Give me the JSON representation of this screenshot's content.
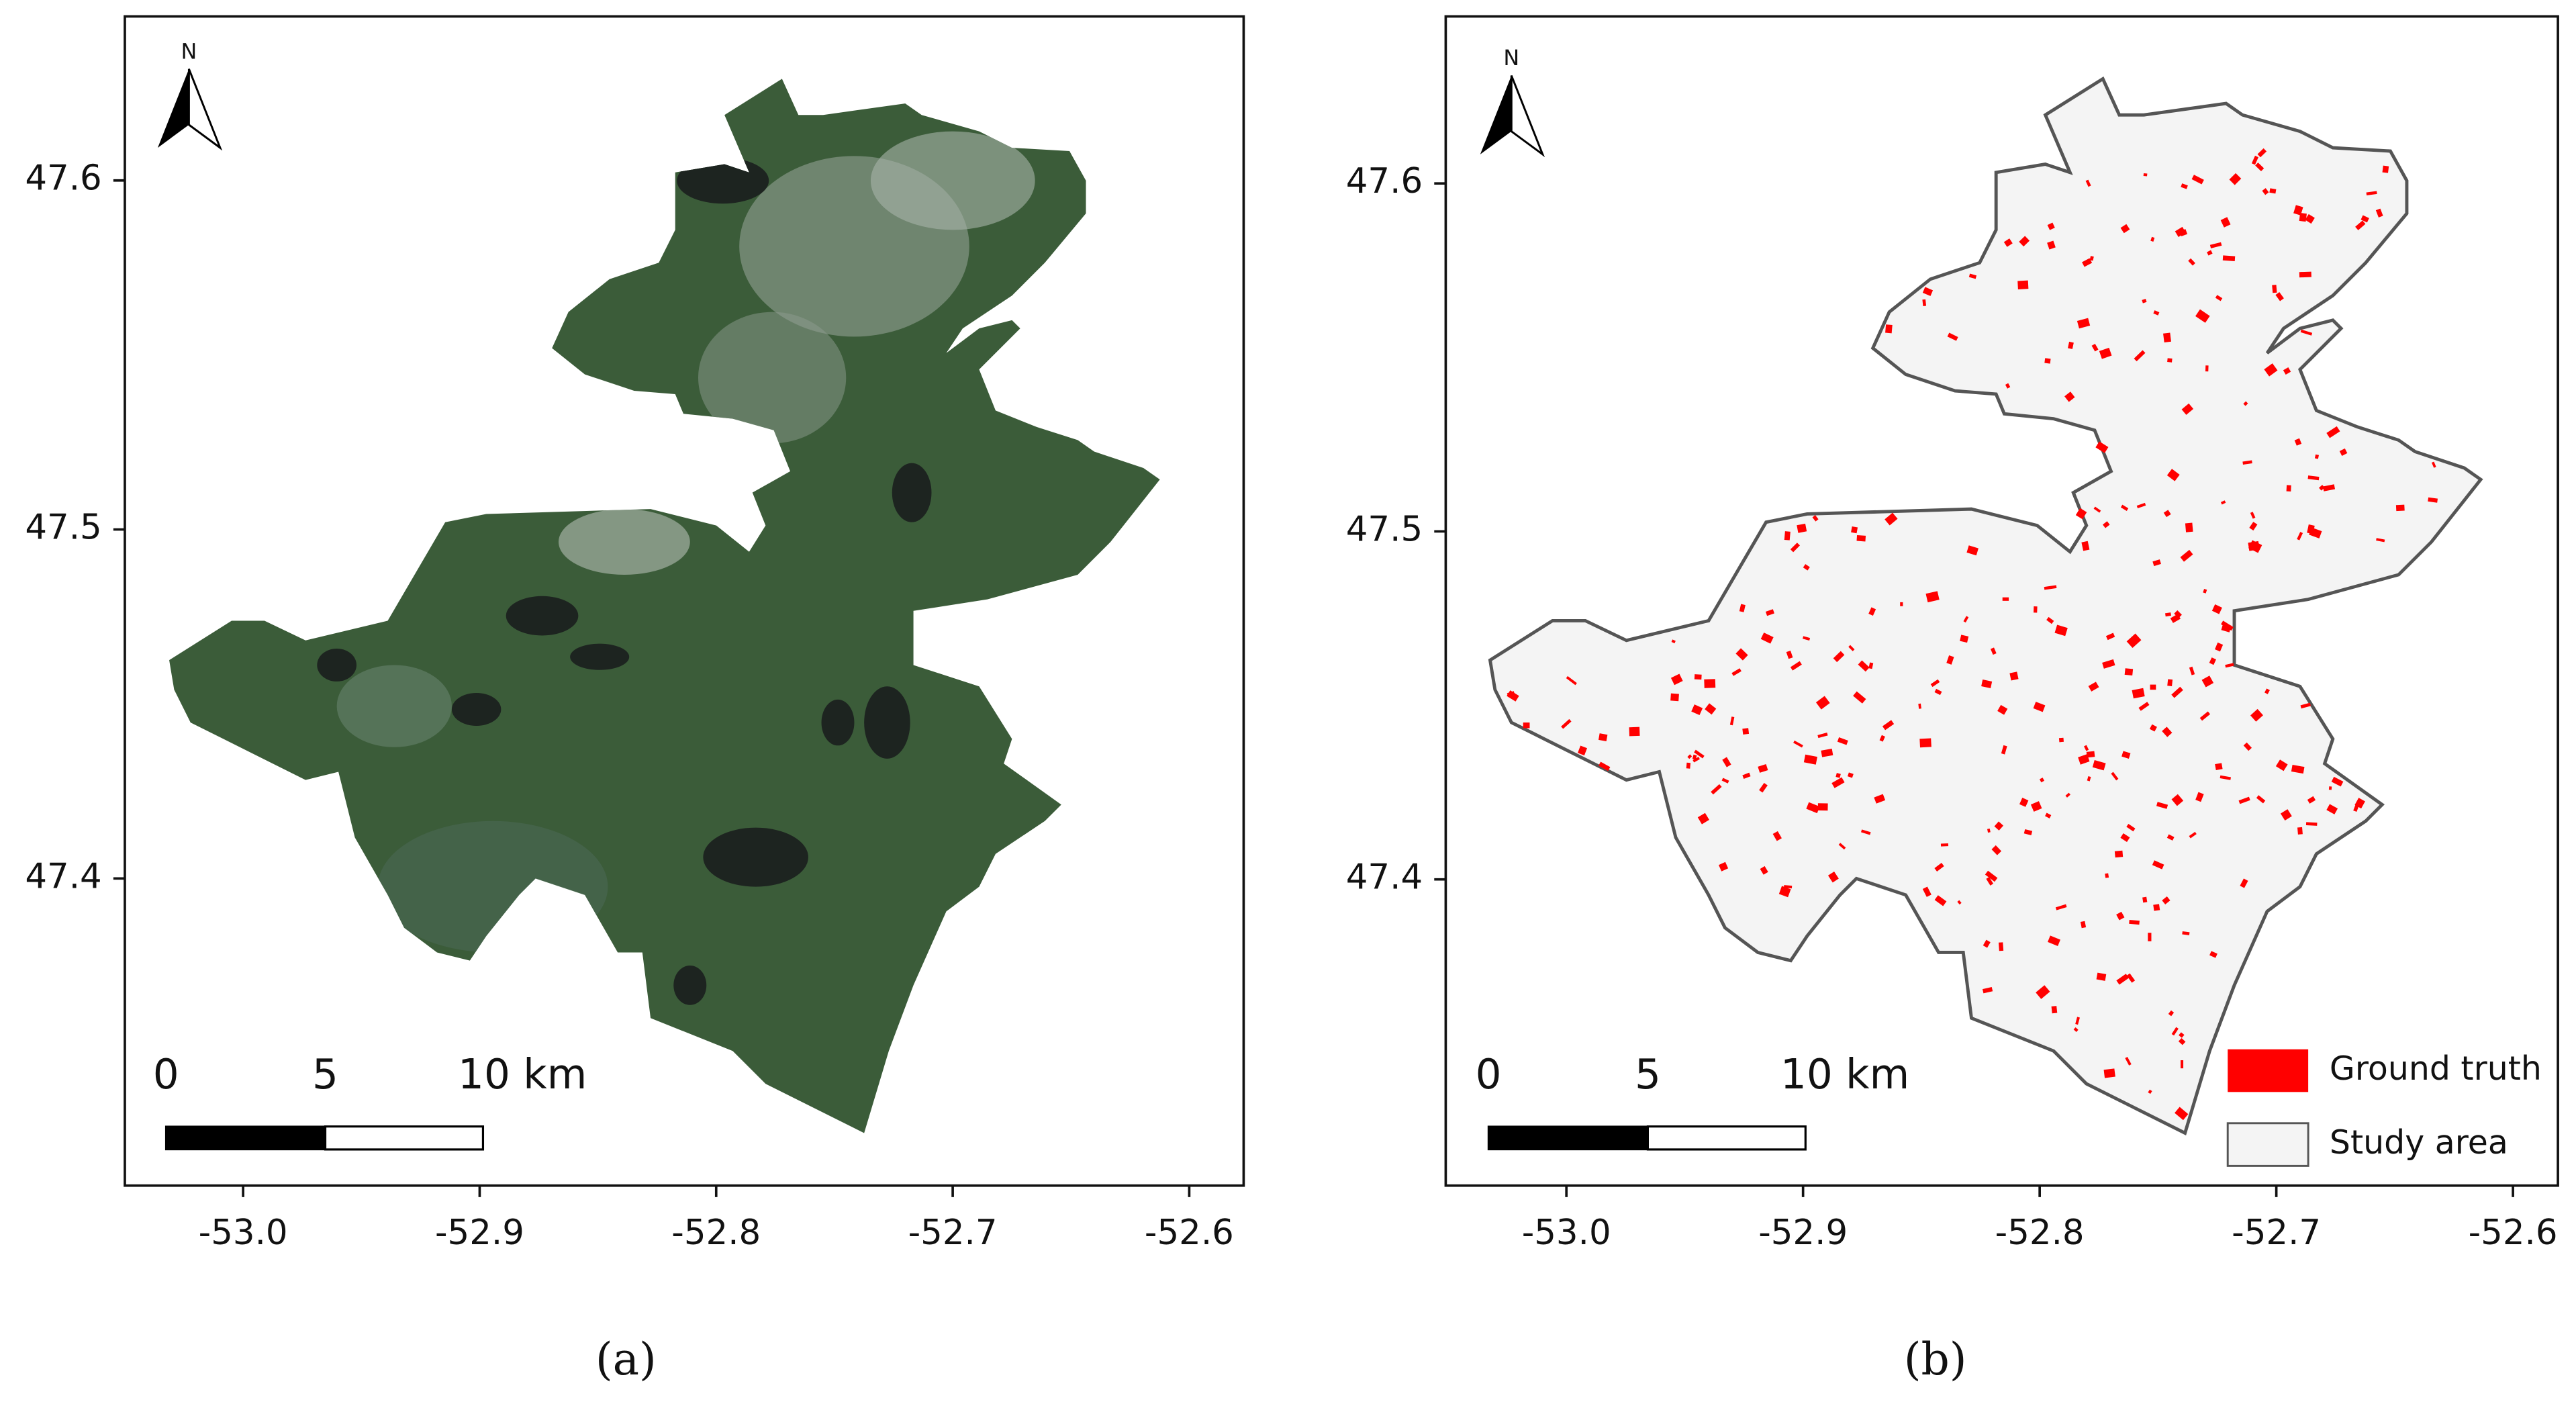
{
  "panels": [
    {
      "caption": "(a)",
      "north": "N",
      "scale_bar": [
        "0",
        "5",
        "10 km"
      ],
      "xlim": [
        -53.05,
        -52.577
      ],
      "ylim": [
        47.312,
        47.647
      ],
      "xticks": [
        {
          "value": -53,
          "label": "-53.0"
        },
        -52.9,
        -52.8,
        -52.7,
        -52.6
      ],
      "yticks": [
        47.4,
        47.5,
        47.6
      ]
    },
    {
      "caption": "(b)",
      "north": "N",
      "scale_bar": [
        "0",
        "5",
        "10 km"
      ],
      "xlim": [
        -53.051,
        -52.581
      ],
      "ylim": [
        47.312,
        47.648
      ],
      "xticks": [
        {
          "value": -53,
          "label": "-53.0"
        },
        -52.9,
        -52.8,
        -52.7,
        -52.6
      ],
      "yticks": [
        47.4,
        47.5,
        47.6
      ],
      "legend": [
        {
          "label": "Ground truth",
          "color": "#ff0000"
        },
        {
          "label": "Study area",
          "color": "#f4f4f4"
        }
      ]
    }
  ]
}
